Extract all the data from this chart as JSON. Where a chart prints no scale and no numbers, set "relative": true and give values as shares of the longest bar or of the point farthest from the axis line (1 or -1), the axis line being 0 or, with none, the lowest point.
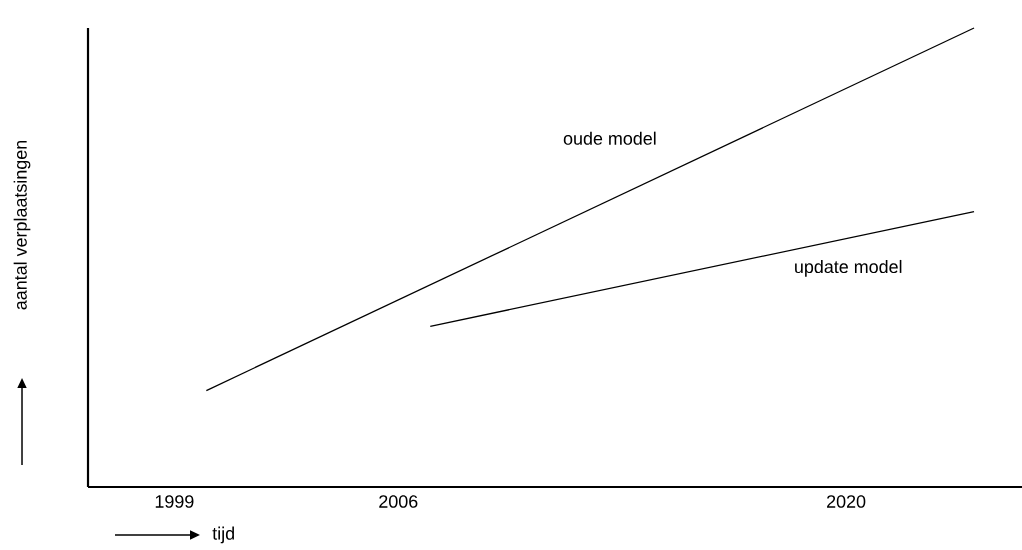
{
  "chart_data": {
    "type": "line",
    "relative": true,
    "xlabel": "tijd",
    "ylabel": "aantal verplaatsingen",
    "xlim": [
      1996.3,
      2025.5
    ],
    "xticks": [
      1999,
      2006,
      2020
    ],
    "grid": false,
    "marker": "none",
    "line_style": "solid",
    "series": [
      {
        "name": "oude model",
        "color": "#000000",
        "x": [
          2000,
          2024
        ],
        "values": [
          0.21,
          1
        ]
      },
      {
        "name": "update model",
        "color": "#000000",
        "x": [
          2007,
          2024
        ],
        "values": [
          0.35,
          0.6
        ]
      }
    ]
  }
}
